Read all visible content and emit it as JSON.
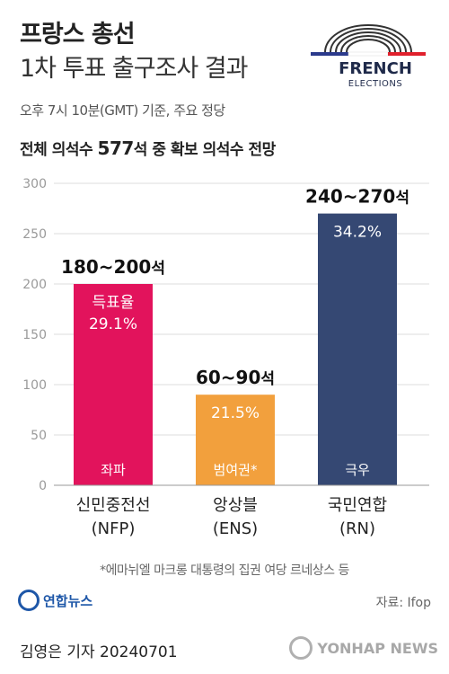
{
  "header": {
    "title_line1": "프랑스 총선",
    "title_line2": "1차 투표 출구조사 결과",
    "subtitle": "오후 7시 10분(GMT) 기준, 주요 정당",
    "caption_pre": "전체 의석수 ",
    "caption_num": "577",
    "caption_post": "석 중 확보 의석수 전망"
  },
  "logo": {
    "title": "FRENCH",
    "subtitle": "ELECTIONS"
  },
  "chart_data": {
    "type": "bar",
    "ylim": [
      0,
      300
    ],
    "yticks": [
      0,
      50,
      100,
      150,
      200,
      250,
      300
    ],
    "categories": [
      "신민중전선\n(NFP)",
      "앙상블\n(ENS)",
      "국민연합\n(RN)"
    ],
    "values": [
      200,
      90,
      270
    ],
    "ranges": [
      [
        180,
        200
      ],
      [
        60,
        90
      ],
      [
        240,
        270
      ]
    ],
    "range_labels": [
      "180~200석",
      "60~90석",
      "240~270석"
    ],
    "vote_share_labels": [
      "득표율\n29.1%",
      "21.5%",
      "34.2%"
    ],
    "bloc_labels": [
      "좌파",
      "범여권*",
      "극우"
    ],
    "colors": [
      "#e2135c",
      "#f2a03d",
      "#354873"
    ]
  },
  "footer": {
    "footnote": "*에마뉘엘 마크롱 대통령의 집권 여당 르네상스 등",
    "agency": "연합뉴스",
    "source": "자료: Ifop",
    "byline": "김영은 기자  20240701",
    "watermark": "YONHAP NEWS"
  },
  "colors": {
    "flag_blue": "#2b3a8c",
    "flag_red": "#e0202c",
    "grid": "#dddddd",
    "axis": "#999999"
  }
}
